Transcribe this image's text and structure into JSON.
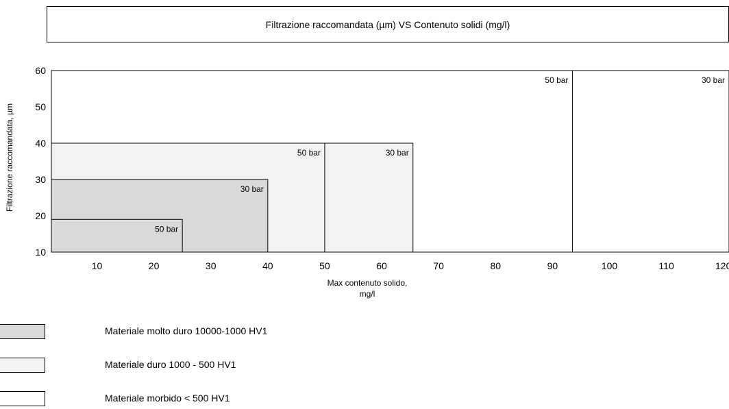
{
  "chart_data": {
    "type": "area",
    "title": "Filtrazione raccomandata (µm)  VS  Contenuto solidi (mg/l)",
    "xlabel_lines": [
      "Max contenuto  solido,",
      "mg/l"
    ],
    "ylabel": "Filtrazione  raccomandata, µm",
    "xlim": [
      2,
      121
    ],
    "ylim": [
      10,
      60
    ],
    "x_ticks": [
      10,
      20,
      30,
      40,
      50,
      60,
      70,
      80,
      90,
      100,
      110,
      120
    ],
    "y_ticks": [
      10,
      20,
      30,
      40,
      50,
      60
    ],
    "grid": false,
    "legend_position": "bottom-left",
    "legend": [
      {
        "key": "molto_duro",
        "label": "Materiale molto duro 10000-1000 HV1",
        "color": "#d9d9d9"
      },
      {
        "key": "duro",
        "label": "Materiale duro 1000 - 500 HV1",
        "color": "#f2f2f2"
      },
      {
        "key": "morbido",
        "label": "Materiale morbido < 500 HV1",
        "color": "#ffffff"
      }
    ],
    "regions": [
      {
        "material": "morbido",
        "pressure": "50 bar",
        "x_max": 93.5,
        "y_max": 60
      },
      {
        "material": "morbido",
        "pressure": "30 bar",
        "x_max": 121,
        "y_max": 60
      },
      {
        "material": "duro",
        "pressure": "50 bar",
        "x_max": 50,
        "y_max": 40
      },
      {
        "material": "duro",
        "pressure": "30 bar",
        "x_max": 65.5,
        "y_max": 40
      },
      {
        "material": "molto_duro",
        "pressure": "30 bar",
        "x_max": 40,
        "y_max": 30
      },
      {
        "material": "molto_duro",
        "pressure": "50 bar",
        "x_max": 25,
        "y_max": 19
      }
    ]
  }
}
